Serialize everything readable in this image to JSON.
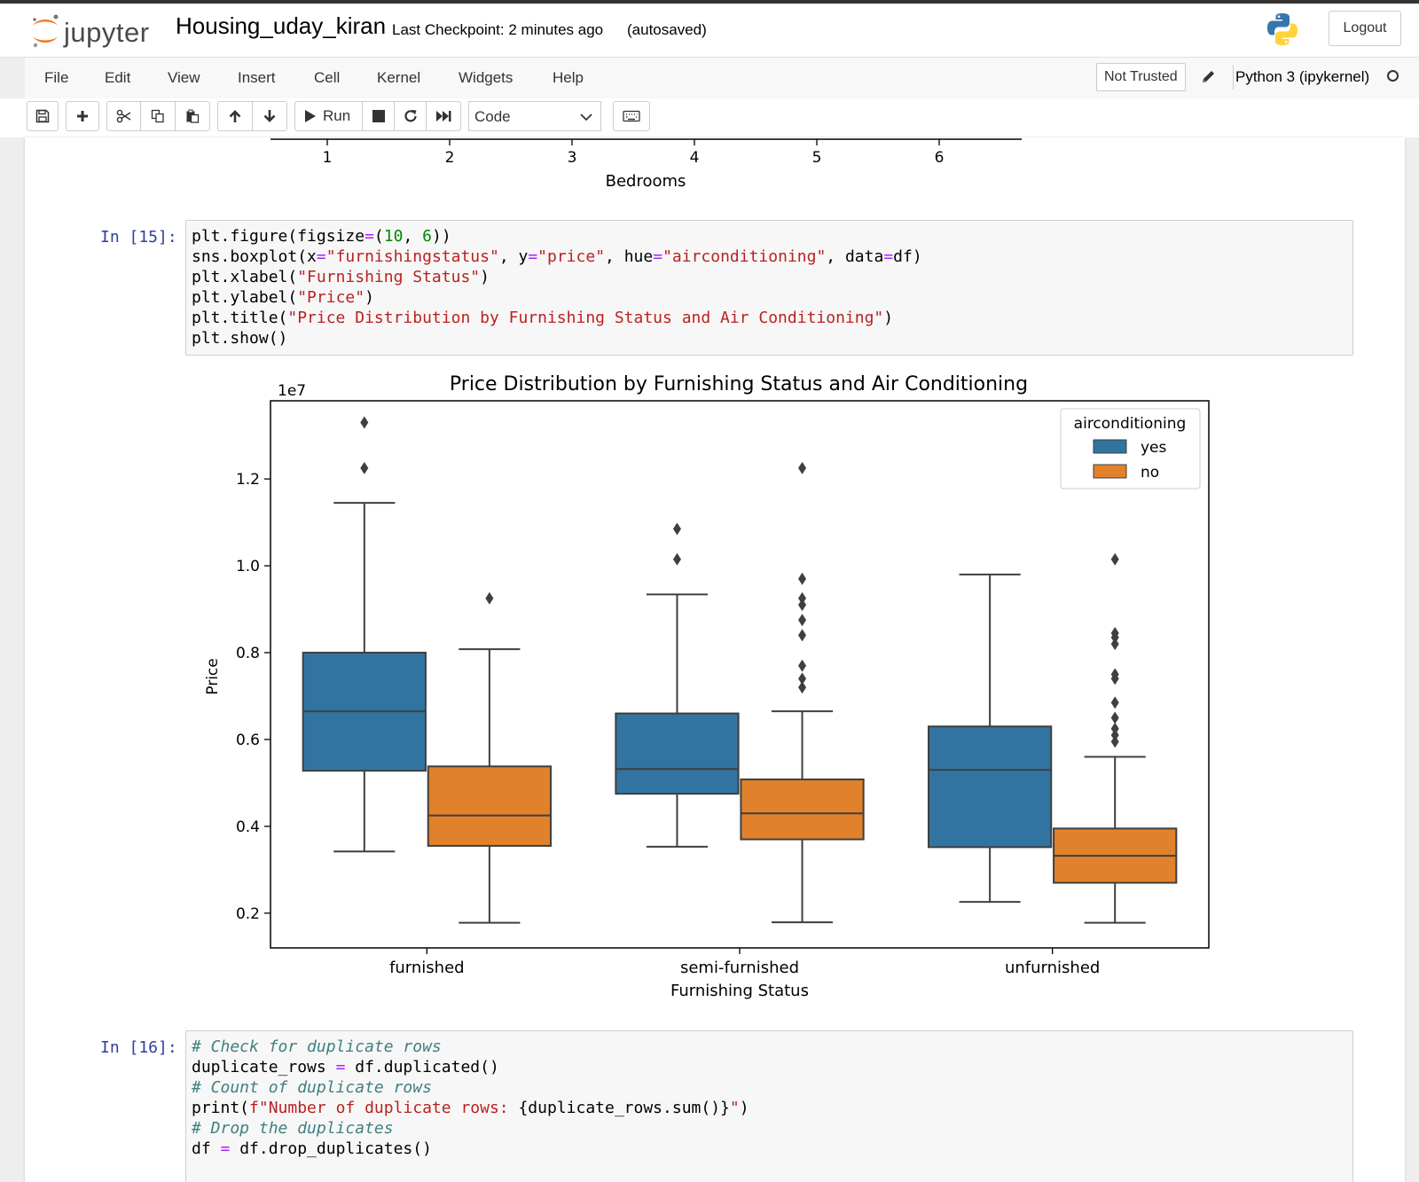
{
  "header": {
    "logo_text": "jupyter",
    "notebook_name": "Housing_uday_kiran",
    "checkpoint": "Last Checkpoint: 2 minutes ago",
    "autosave_status": "(autosaved)",
    "logout_label": "Logout"
  },
  "menu": {
    "items": [
      "File",
      "Edit",
      "View",
      "Insert",
      "Cell",
      "Kernel",
      "Widgets",
      "Help"
    ],
    "trust_label": "Not Trusted",
    "kernel_name": "Python 3 (ipykernel)"
  },
  "toolbar": {
    "run_label": "Run",
    "cell_type": "Code",
    "icons": [
      "save-icon",
      "plus-icon",
      "scissors-icon",
      "copy-icon",
      "paste-icon",
      "arrow-up-icon",
      "arrow-down-icon",
      "play-icon",
      "stop-icon",
      "restart-icon",
      "fast-forward-icon",
      "keyboard-icon"
    ]
  },
  "prev_output": {
    "xlabel": "Bedrooms",
    "ticks": [
      "1",
      "2",
      "3",
      "4",
      "5",
      "6"
    ]
  },
  "cells": [
    {
      "prompt": "In [15]:",
      "lines": [
        [
          [
            "t",
            "plt.figure(figsize"
          ],
          [
            "o",
            "="
          ],
          [
            "t",
            "("
          ],
          [
            "n",
            "10"
          ],
          [
            "t",
            ", "
          ],
          [
            "n",
            "6"
          ],
          [
            "t",
            "))"
          ]
        ],
        [
          [
            "t",
            "sns.boxplot(x"
          ],
          [
            "o",
            "="
          ],
          [
            "s",
            "\"furnishingstatus\""
          ],
          [
            "t",
            ", y"
          ],
          [
            "o",
            "="
          ],
          [
            "s",
            "\"price\""
          ],
          [
            "t",
            ", hue"
          ],
          [
            "o",
            "="
          ],
          [
            "s",
            "\"airconditioning\""
          ],
          [
            "t",
            ", data"
          ],
          [
            "o",
            "="
          ],
          [
            "t",
            "df)"
          ]
        ],
        [
          [
            "t",
            "plt.xlabel("
          ],
          [
            "s",
            "\"Furnishing Status\""
          ],
          [
            "t",
            ")"
          ]
        ],
        [
          [
            "t",
            "plt.ylabel("
          ],
          [
            "s",
            "\"Price\""
          ],
          [
            "t",
            ")"
          ]
        ],
        [
          [
            "t",
            "plt.title("
          ],
          [
            "s",
            "\"Price Distribution by Furnishing Status and Air Conditioning\""
          ],
          [
            "t",
            ")"
          ]
        ],
        [
          [
            "t",
            "plt.show()"
          ]
        ]
      ]
    },
    {
      "prompt": "In [16]:",
      "lines": [
        [
          [
            "c",
            "# Check for duplicate rows"
          ]
        ],
        [
          [
            "t",
            "duplicate_rows "
          ],
          [
            "o",
            "="
          ],
          [
            "t",
            " df.duplicated()"
          ]
        ],
        [
          [
            "c",
            "# Count of duplicate rows"
          ]
        ],
        [
          [
            "t",
            "print("
          ],
          [
            "s",
            "f\"Number of duplicate rows: "
          ],
          [
            "t",
            "{duplicate_rows.sum()}"
          ],
          [
            "s",
            "\""
          ],
          [
            "t",
            ")"
          ]
        ],
        [
          [
            "c",
            "# Drop the duplicates"
          ]
        ],
        [
          [
            "t",
            "df "
          ],
          [
            "o",
            "="
          ],
          [
            "t",
            " df.drop_duplicates()"
          ]
        ]
      ]
    }
  ],
  "chart_data": {
    "type": "box",
    "title": "Price Distribution by Furnishing Status and Air Conditioning",
    "xlabel": "Furnishing Status",
    "ylabel": "Price",
    "y_offset_label": "1e7",
    "categories": [
      "furnished",
      "semi-furnished",
      "unfurnished"
    ],
    "ylim": [
      0.12,
      1.38
    ],
    "yticks": [
      0.2,
      0.4,
      0.6,
      0.8,
      1.0,
      1.2
    ],
    "ytick_labels": [
      "0.2",
      "0.4",
      "0.6",
      "0.8",
      "1.0",
      "1.2"
    ],
    "legend": {
      "title": "airconditioning",
      "position": "upper right"
    },
    "series": [
      {
        "name": "yes",
        "color": "#3274a1",
        "boxes": [
          {
            "min": 0.342,
            "q1": 0.528,
            "median": 0.665,
            "q3": 0.8,
            "max": 1.145,
            "outliers": [
              1.225,
              1.33
            ]
          },
          {
            "min": 0.353,
            "q1": 0.475,
            "median": 0.532,
            "q3": 0.66,
            "max": 0.934,
            "outliers": [
              1.015,
              1.085
            ]
          },
          {
            "min": 0.226,
            "q1": 0.352,
            "median": 0.53,
            "q3": 0.63,
            "max": 0.98,
            "outliers": []
          }
        ]
      },
      {
        "name": "no",
        "color": "#e1812c",
        "boxes": [
          {
            "min": 0.178,
            "q1": 0.355,
            "median": 0.425,
            "q3": 0.538,
            "max": 0.808,
            "outliers": [
              0.925
            ]
          },
          {
            "min": 0.179,
            "q1": 0.37,
            "median": 0.43,
            "q3": 0.508,
            "max": 0.665,
            "outliers": [
              0.72,
              0.74,
              0.77,
              0.84,
              0.875,
              0.91,
              0.925,
              0.97,
              1.225
            ]
          },
          {
            "min": 0.178,
            "q1": 0.27,
            "median": 0.332,
            "q3": 0.395,
            "max": 0.56,
            "outliers": [
              0.595,
              0.61,
              0.625,
              0.65,
              0.685,
              0.74,
              0.75,
              0.82,
              0.835,
              0.845,
              1.015
            ]
          }
        ]
      }
    ]
  }
}
